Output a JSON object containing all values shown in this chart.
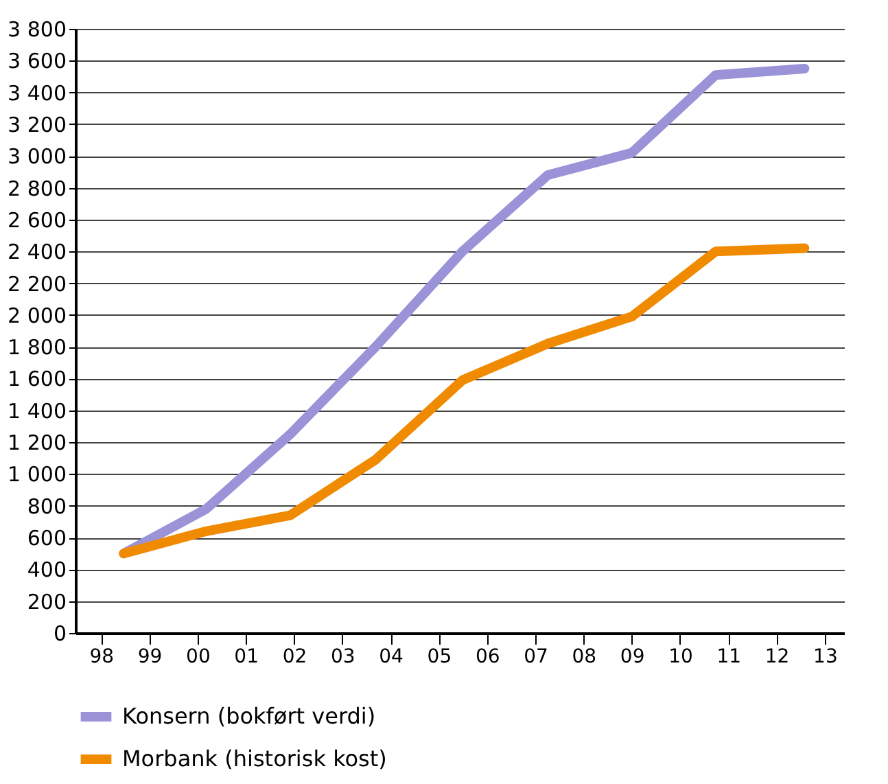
{
  "chart_data": {
    "type": "line",
    "x": [
      1998.47,
      2000.18,
      2001.92,
      2003.69,
      2005.49,
      2007.26,
      2009.0,
      2010.74,
      2012.58
    ],
    "series": [
      {
        "name": "Konsern (bokført verdi)",
        "color": "#9b93d8",
        "values": [
          500,
          780,
          1250,
          1800,
          2400,
          2880,
          3020,
          3510,
          3550
        ]
      },
      {
        "name": "Morbank (historisk kost)",
        "color": "#f08a00",
        "values": [
          500,
          640,
          740,
          1090,
          1590,
          1820,
          1990,
          2400,
          2420
        ]
      }
    ],
    "xlim": [
      1997.47,
      2013.4
    ],
    "xticks": [
      {
        "value": 1998,
        "label": "98"
      },
      {
        "value": 1999,
        "label": "99"
      },
      {
        "value": 2000,
        "label": "00"
      },
      {
        "value": 2001,
        "label": "01"
      },
      {
        "value": 2002,
        "label": "02"
      },
      {
        "value": 2003,
        "label": "03"
      },
      {
        "value": 2004,
        "label": "04"
      },
      {
        "value": 2005,
        "label": "05"
      },
      {
        "value": 2006,
        "label": "06"
      },
      {
        "value": 2007,
        "label": "07"
      },
      {
        "value": 2008,
        "label": "08"
      },
      {
        "value": 2009,
        "label": "09"
      },
      {
        "value": 2010,
        "label": "10"
      },
      {
        "value": 2011,
        "label": "11"
      },
      {
        "value": 2012,
        "label": "12"
      },
      {
        "value": 2013,
        "label": "13"
      }
    ],
    "ylim": [
      0,
      3800
    ],
    "yticks": [
      0,
      200,
      400,
      600,
      800,
      {
        "value": 1000,
        "label": "1 000"
      },
      {
        "value": 1200,
        "label": "1 200"
      },
      {
        "value": 1400,
        "label": "1 400"
      },
      {
        "value": 1600,
        "label": "1 600"
      },
      {
        "value": 1800,
        "label": "1 800"
      },
      {
        "value": 2000,
        "label": "2 000"
      },
      {
        "value": 2200,
        "label": "2 200"
      },
      {
        "value": 2400,
        "label": "2 400"
      },
      {
        "value": 2600,
        "label": "2 600"
      },
      {
        "value": 2800,
        "label": "2 800"
      },
      {
        "value": 3000,
        "label": "3 000"
      },
      {
        "value": 3200,
        "label": "3 200"
      },
      {
        "value": 3400,
        "label": "3 400"
      },
      {
        "value": 3600,
        "label": "3 600"
      },
      {
        "value": 3800,
        "label": "3 800"
      }
    ],
    "grid": "y",
    "legend": "bottom left",
    "line_style": "solid",
    "marker": "none"
  }
}
